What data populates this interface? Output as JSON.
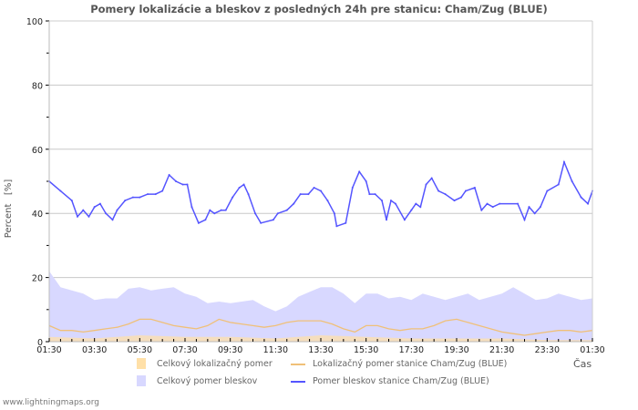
{
  "chart_data": {
    "type": "line",
    "title": "Pomery lokalizácie a bleskov z posledných 24h pre stanicu: Cham/Zug (BLUE)",
    "xlabel": "Čas",
    "ylabel": "Percent   [%]",
    "ylim": [
      0,
      100
    ],
    "yticks": [
      "0",
      "20",
      "40",
      "60",
      "80",
      "100"
    ],
    "xticks": [
      "01:30",
      "03:30",
      "05:30",
      "07:30",
      "09:30",
      "11:30",
      "13:30",
      "15:30",
      "17:30",
      "19:30",
      "21:30",
      "23:30",
      "01:30"
    ],
    "x_unit": "hours since first tick",
    "grid": true,
    "legend_position": "bottom",
    "series": [
      {
        "name": "Celkový pomer bleskov",
        "kind": "area",
        "color": "#d8d8ff",
        "x": [
          0,
          0.5,
          1,
          1.5,
          2,
          2.5,
          3,
          3.5,
          4,
          4.5,
          5,
          5.5,
          6,
          6.5,
          7,
          7.5,
          8,
          8.5,
          9,
          9.5,
          10,
          10.5,
          11,
          11.5,
          12,
          12.5,
          13,
          13.5,
          14,
          14.5,
          15,
          15.5,
          16,
          16.5,
          17,
          17.5,
          18,
          18.5,
          19,
          19.5,
          20,
          20.5,
          21,
          21.5,
          22,
          22.5,
          23,
          23.5,
          24
        ],
        "y": [
          22,
          17,
          16,
          15,
          13,
          13.5,
          13.5,
          16.5,
          17,
          16,
          16.5,
          17,
          15,
          14,
          12,
          12.5,
          12,
          12.5,
          13,
          11,
          9.5,
          11,
          14,
          15.5,
          17,
          17,
          15,
          12,
          15,
          15,
          13.5,
          14,
          13,
          15,
          14,
          13,
          14,
          15,
          13,
          14,
          15,
          17,
          15,
          13,
          13.5,
          15,
          14,
          13,
          13.5
        ]
      },
      {
        "name": "Celkový lokalizačný pomer",
        "kind": "area",
        "color": "#ffe0a8",
        "x": [
          0,
          2,
          4,
          6,
          8,
          10,
          12,
          14,
          16,
          18,
          20,
          22,
          24
        ],
        "y": [
          1.5,
          1,
          2,
          1.5,
          1.5,
          1,
          2,
          1.5,
          1,
          1,
          1,
          0.5,
          0.5
        ]
      },
      {
        "name": "Lokalizačný pomer stanice Cham/Zug (BLUE)",
        "kind": "line",
        "color": "#f0c078",
        "x": [
          0,
          0.5,
          1,
          1.5,
          2,
          2.5,
          3,
          3.5,
          4,
          4.5,
          5,
          5.5,
          6,
          6.5,
          7,
          7.5,
          8,
          8.5,
          9,
          9.5,
          10,
          10.5,
          11,
          11.5,
          12,
          12.5,
          13,
          13.5,
          14,
          14.5,
          15,
          15.5,
          16,
          16.5,
          17,
          17.5,
          18,
          18.5,
          19,
          19.5,
          20,
          20.5,
          21,
          21.5,
          22,
          22.5,
          23,
          23.5,
          24
        ],
        "y": [
          5,
          3.5,
          3.5,
          3,
          3.5,
          4,
          4.5,
          5.5,
          7,
          7,
          6,
          5,
          4.5,
          4,
          5,
          7,
          6,
          5.5,
          5,
          4.5,
          5,
          6,
          6.5,
          6.5,
          6.5,
          5.5,
          4,
          3,
          5,
          5,
          4,
          3.5,
          4,
          4,
          5,
          6.5,
          7,
          6,
          5,
          4,
          3,
          2.5,
          2,
          2.5,
          3,
          3.5,
          3.5,
          3,
          3.5
        ]
      },
      {
        "name": "Pomer bleskov stanice Cham/Zug (BLUE)",
        "kind": "line",
        "color": "#5555ff",
        "x": [
          0,
          0.5,
          1,
          1.25,
          1.5,
          1.75,
          2,
          2.25,
          2.5,
          2.8,
          3,
          3.35,
          3.7,
          4,
          4.35,
          4.7,
          5,
          5.3,
          5.6,
          5.9,
          6.1,
          6.3,
          6.6,
          6.9,
          7.1,
          7.3,
          7.6,
          7.8,
          8.1,
          8.4,
          8.6,
          8.8,
          9.1,
          9.35,
          9.9,
          10.1,
          10.5,
          10.8,
          11.1,
          11.45,
          11.7,
          12,
          12.3,
          12.6,
          12.7,
          13.1,
          13.4,
          13.7,
          14,
          14.15,
          14.4,
          14.7,
          14.9,
          15.1,
          15.3,
          15.7,
          16,
          16.2,
          16.4,
          16.65,
          16.9,
          17.2,
          17.5,
          17.9,
          18.2,
          18.4,
          18.8,
          19.1,
          19.35,
          19.6,
          19.9,
          20.7,
          21,
          21.2,
          21.45,
          21.7,
          22,
          22.5,
          22.75,
          23.1,
          23.5,
          23.8,
          24
        ],
        "y": [
          50,
          47,
          44,
          39,
          41,
          39,
          42,
          43,
          40,
          38,
          41,
          44,
          45,
          45,
          46,
          46,
          47,
          52,
          50,
          49,
          49,
          42,
          37,
          38,
          41,
          40,
          41,
          41,
          45,
          48,
          49,
          46,
          40,
          37,
          38,
          40,
          41,
          43,
          46,
          46,
          48,
          47,
          44,
          40,
          36,
          37,
          48,
          53,
          50,
          46,
          46,
          44,
          38,
          44,
          43,
          38,
          41,
          43,
          42,
          49,
          51,
          47,
          46,
          44,
          45,
          47,
          48,
          41,
          43,
          42,
          43,
          43,
          38,
          42,
          40,
          42,
          47,
          49,
          56,
          50,
          45,
          43,
          47
        ]
      }
    ]
  },
  "footer": "www.lightningmaps.org"
}
